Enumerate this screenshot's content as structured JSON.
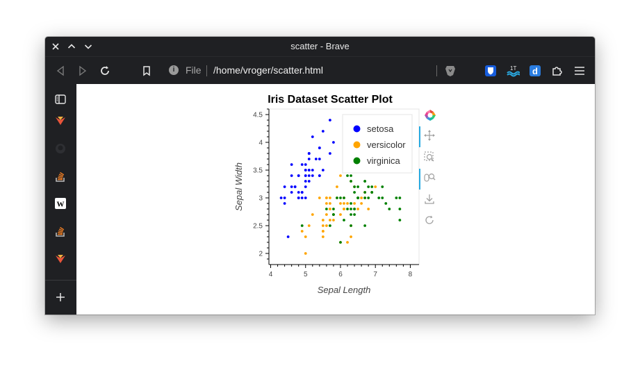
{
  "window": {
    "title": "scatter - Brave"
  },
  "address_bar": {
    "scheme": "File",
    "path": "/home/vroger/scatter.html"
  },
  "icons": {
    "close": "close-icon",
    "up": "chevron-up-icon",
    "down": "chevron-down-icon",
    "back": "back-arrow-icon",
    "forward": "forward-arrow-icon",
    "reload": "reload-icon",
    "bookmark": "bookmark-icon",
    "info": "info-icon",
    "brave_shield": "brave-lion-icon",
    "extensions": [
      "bitwarden-icon",
      "wave-icon",
      "d-icon",
      "puzzle-icon"
    ],
    "menu": "hamburger-menu-icon",
    "sidebar": [
      "sidebar-panel-icon",
      "brave-rewards-icon",
      "github-icon",
      "stackoverflow-icon",
      "wikipedia-icon",
      "stackoverflow-icon",
      "brave-rewards-icon",
      "add-icon"
    ],
    "plot_tools": [
      "bokeh-logo-icon",
      "pan-icon",
      "box-zoom-icon",
      "wheel-zoom-icon",
      "save-icon",
      "reset-icon"
    ]
  },
  "colors": {
    "setosa": "#0000ff",
    "versicolor": "#ffa500",
    "virginica": "#008000",
    "active_tool": "#26aae1"
  },
  "chart_data": {
    "type": "scatter",
    "title": "Iris Dataset Scatter Plot",
    "xlabel": "Sepal Length",
    "ylabel": "Sepal Width",
    "xlim": [
      3.95,
      8.25
    ],
    "ylim": [
      1.8,
      4.6
    ],
    "x_ticks": [
      4,
      5,
      6,
      7,
      8
    ],
    "y_ticks": [
      2,
      2.5,
      3,
      3.5,
      4,
      4.5
    ],
    "legend_position": "top-right",
    "series": [
      {
        "name": "setosa",
        "color": "#0000ff",
        "points": [
          [
            5.1,
            3.5
          ],
          [
            4.9,
            3.0
          ],
          [
            4.7,
            3.2
          ],
          [
            4.6,
            3.1
          ],
          [
            5.0,
            3.6
          ],
          [
            5.4,
            3.9
          ],
          [
            4.6,
            3.4
          ],
          [
            5.0,
            3.4
          ],
          [
            4.4,
            2.9
          ],
          [
            4.9,
            3.1
          ],
          [
            5.4,
            3.7
          ],
          [
            4.8,
            3.4
          ],
          [
            4.8,
            3.0
          ],
          [
            4.3,
            3.0
          ],
          [
            5.8,
            4.0
          ],
          [
            5.7,
            4.4
          ],
          [
            5.4,
            3.9
          ],
          [
            5.1,
            3.5
          ],
          [
            5.7,
            3.8
          ],
          [
            5.1,
            3.8
          ],
          [
            5.4,
            3.4
          ],
          [
            5.1,
            3.7
          ],
          [
            4.6,
            3.6
          ],
          [
            5.1,
            3.3
          ],
          [
            4.8,
            3.4
          ],
          [
            5.0,
            3.0
          ],
          [
            5.0,
            3.4
          ],
          [
            5.2,
            3.5
          ],
          [
            5.2,
            3.4
          ],
          [
            4.7,
            3.2
          ],
          [
            4.8,
            3.1
          ],
          [
            5.4,
            3.4
          ],
          [
            5.2,
            4.1
          ],
          [
            5.5,
            4.2
          ],
          [
            4.9,
            3.1
          ],
          [
            5.0,
            3.2
          ],
          [
            5.5,
            3.5
          ],
          [
            4.9,
            3.6
          ],
          [
            4.4,
            3.0
          ],
          [
            5.1,
            3.4
          ],
          [
            5.0,
            3.5
          ],
          [
            4.5,
            2.3
          ],
          [
            4.4,
            3.2
          ],
          [
            5.0,
            3.5
          ],
          [
            5.1,
            3.8
          ],
          [
            4.8,
            3.0
          ],
          [
            5.1,
            3.8
          ],
          [
            4.6,
            3.2
          ],
          [
            5.3,
            3.7
          ],
          [
            5.0,
            3.3
          ]
        ]
      },
      {
        "name": "versicolor",
        "color": "#ffa500",
        "points": [
          [
            7.0,
            3.2
          ],
          [
            6.4,
            3.2
          ],
          [
            6.9,
            3.1
          ],
          [
            5.5,
            2.3
          ],
          [
            6.5,
            2.8
          ],
          [
            5.7,
            2.8
          ],
          [
            6.3,
            3.3
          ],
          [
            4.9,
            2.4
          ],
          [
            6.6,
            2.9
          ],
          [
            5.2,
            2.7
          ],
          [
            5.0,
            2.0
          ],
          [
            5.9,
            3.0
          ],
          [
            6.0,
            2.2
          ],
          [
            6.1,
            2.9
          ],
          [
            5.6,
            2.9
          ],
          [
            6.7,
            3.1
          ],
          [
            5.6,
            3.0
          ],
          [
            5.8,
            2.7
          ],
          [
            6.2,
            2.2
          ],
          [
            5.6,
            2.5
          ],
          [
            5.9,
            3.2
          ],
          [
            6.1,
            2.8
          ],
          [
            6.3,
            2.5
          ],
          [
            6.1,
            2.8
          ],
          [
            6.4,
            2.9
          ],
          [
            6.6,
            3.0
          ],
          [
            6.8,
            2.8
          ],
          [
            6.7,
            3.0
          ],
          [
            6.0,
            2.9
          ],
          [
            5.7,
            2.6
          ],
          [
            5.5,
            2.4
          ],
          [
            5.5,
            2.4
          ],
          [
            5.8,
            2.7
          ],
          [
            6.0,
            2.7
          ],
          [
            5.4,
            3.0
          ],
          [
            6.0,
            3.4
          ],
          [
            6.7,
            3.1
          ],
          [
            6.3,
            2.3
          ],
          [
            5.6,
            3.0
          ],
          [
            5.5,
            2.5
          ],
          [
            5.5,
            2.6
          ],
          [
            6.1,
            3.0
          ],
          [
            5.8,
            2.6
          ],
          [
            5.0,
            2.3
          ],
          [
            5.6,
            2.7
          ],
          [
            5.7,
            3.0
          ],
          [
            5.7,
            2.9
          ],
          [
            6.2,
            2.9
          ],
          [
            5.1,
            2.5
          ],
          [
            5.7,
            2.8
          ]
        ]
      },
      {
        "name": "virginica",
        "color": "#008000",
        "points": [
          [
            6.3,
            3.3
          ],
          [
            5.8,
            2.7
          ],
          [
            7.1,
            3.0
          ],
          [
            6.3,
            2.9
          ],
          [
            6.5,
            3.0
          ],
          [
            7.6,
            3.0
          ],
          [
            4.9,
            2.5
          ],
          [
            7.3,
            2.9
          ],
          [
            6.7,
            2.5
          ],
          [
            7.2,
            3.6
          ],
          [
            6.5,
            3.2
          ],
          [
            6.4,
            2.7
          ],
          [
            6.8,
            3.0
          ],
          [
            5.7,
            2.5
          ],
          [
            5.8,
            2.8
          ],
          [
            6.4,
            3.2
          ],
          [
            6.5,
            3.0
          ],
          [
            7.7,
            3.8
          ],
          [
            7.7,
            2.6
          ],
          [
            6.0,
            2.2
          ],
          [
            6.9,
            3.2
          ],
          [
            5.6,
            2.8
          ],
          [
            7.7,
            2.8
          ],
          [
            6.3,
            2.7
          ],
          [
            6.7,
            3.3
          ],
          [
            7.2,
            3.2
          ],
          [
            6.2,
            2.8
          ],
          [
            6.1,
            3.0
          ],
          [
            6.4,
            2.8
          ],
          [
            7.2,
            3.0
          ],
          [
            7.4,
            2.8
          ],
          [
            7.9,
            3.8
          ],
          [
            6.4,
            2.8
          ],
          [
            6.3,
            2.8
          ],
          [
            6.1,
            2.6
          ],
          [
            7.7,
            3.0
          ],
          [
            6.3,
            3.4
          ],
          [
            6.4,
            3.1
          ],
          [
            6.0,
            3.0
          ],
          [
            6.9,
            3.1
          ],
          [
            6.7,
            3.1
          ],
          [
            6.9,
            3.1
          ],
          [
            5.8,
            2.7
          ],
          [
            6.8,
            3.2
          ],
          [
            6.7,
            3.3
          ],
          [
            6.7,
            3.0
          ],
          [
            6.3,
            2.5
          ],
          [
            6.5,
            3.0
          ],
          [
            6.2,
            3.4
          ],
          [
            5.9,
            3.0
          ]
        ]
      }
    ]
  }
}
